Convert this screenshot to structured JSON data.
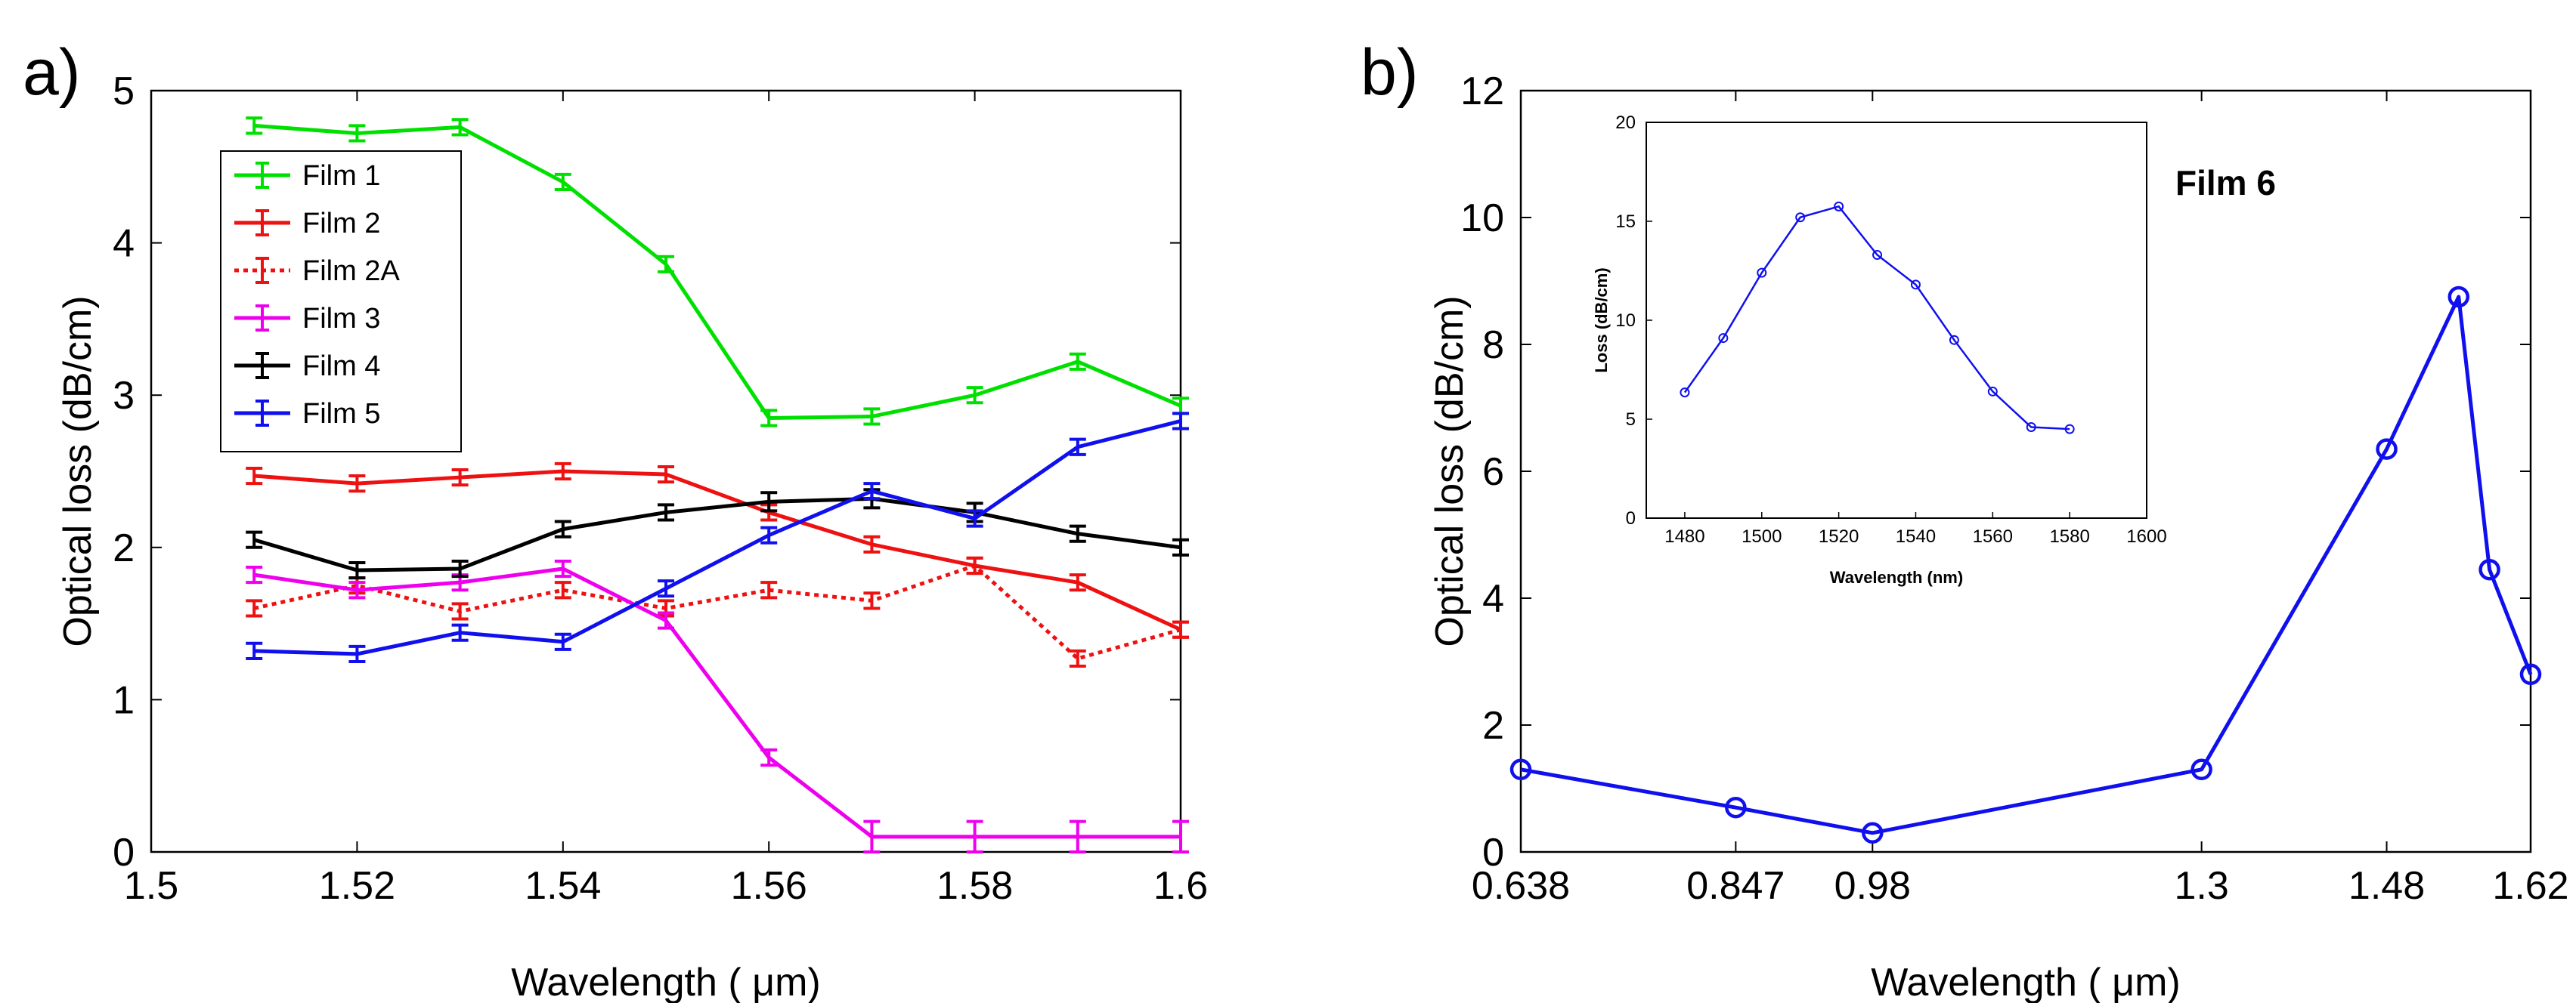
{
  "colors": {
    "film1": "#00e000",
    "film2": "#ee1111",
    "film2a": "#ee1111",
    "film3": "#ee00ee",
    "film4": "#000000",
    "film5": "#1010ee",
    "film6": "#1010ee"
  },
  "chart_data": [
    {
      "panel_label": "a)",
      "type": "line",
      "title": "",
      "xlabel": "Wavelength ( μm)",
      "ylabel": "Optical loss (dB/cm)",
      "xlim": [
        1.5,
        1.6
      ],
      "ylim": [
        0,
        5
      ],
      "xticks": [
        1.5,
        1.52,
        1.54,
        1.56,
        1.58,
        1.6
      ],
      "xtick_labels": [
        "1.5",
        "1.52",
        "1.54",
        "1.56",
        "1.58",
        "1.6"
      ],
      "yticks": [
        0,
        1,
        2,
        3,
        4,
        5
      ],
      "ytick_labels": [
        "0",
        "1",
        "2",
        "3",
        "4",
        "5"
      ],
      "legend_position": "top-left",
      "x": [
        1.51,
        1.52,
        1.53,
        1.54,
        1.55,
        1.56,
        1.57,
        1.58,
        1.59,
        1.6
      ],
      "series": [
        {
          "name": "Film 1",
          "color_key": "film1",
          "dashed": false,
          "values": [
            4.77,
            4.72,
            4.76,
            4.4,
            3.86,
            2.85,
            2.86,
            3.0,
            3.22,
            2.93
          ],
          "errors": [
            0.05,
            0.05,
            0.05,
            0.05,
            0.05,
            0.05,
            0.05,
            0.05,
            0.05,
            0.05
          ]
        },
        {
          "name": "Film 2",
          "color_key": "film2",
          "dashed": false,
          "values": [
            2.47,
            2.42,
            2.46,
            2.5,
            2.48,
            2.23,
            2.02,
            1.88,
            1.77,
            1.46
          ],
          "errors": [
            0.05,
            0.05,
            0.05,
            0.05,
            0.05,
            0.05,
            0.05,
            0.05,
            0.05,
            0.05
          ]
        },
        {
          "name": "Film 2A",
          "color_key": "film2a",
          "dashed": true,
          "values": [
            1.6,
            1.75,
            1.58,
            1.72,
            1.6,
            1.72,
            1.65,
            1.88,
            1.27,
            1.46
          ],
          "errors": [
            0.05,
            0.05,
            0.05,
            0.05,
            0.05,
            0.05,
            0.05,
            0.05,
            0.05,
            0.05
          ]
        },
        {
          "name": "Film 3",
          "color_key": "film3",
          "dashed": false,
          "values": [
            1.82,
            1.72,
            1.77,
            1.86,
            1.52,
            0.62,
            0.1,
            0.1,
            0.1,
            0.1
          ],
          "errors": [
            0.05,
            0.05,
            0.05,
            0.05,
            0.05,
            0.05,
            0.1,
            0.1,
            0.1,
            0.1
          ]
        },
        {
          "name": "Film 4",
          "color_key": "film4",
          "dashed": false,
          "values": [
            2.05,
            1.85,
            1.86,
            2.12,
            2.23,
            2.3,
            2.32,
            2.23,
            2.09,
            2.0
          ],
          "errors": [
            0.05,
            0.05,
            0.05,
            0.05,
            0.05,
            0.06,
            0.06,
            0.06,
            0.05,
            0.05
          ]
        },
        {
          "name": "Film 5",
          "color_key": "film5",
          "dashed": false,
          "values": [
            1.32,
            1.3,
            1.44,
            1.38,
            1.73,
            2.08,
            2.37,
            2.19,
            2.66,
            2.83
          ],
          "errors": [
            0.05,
            0.05,
            0.05,
            0.05,
            0.05,
            0.05,
            0.05,
            0.05,
            0.05,
            0.05
          ]
        }
      ]
    },
    {
      "panel_label": "b)",
      "type": "line",
      "title": "",
      "annotation": "Film 6",
      "xlabel": "Wavelength ( μm)",
      "ylabel": "Optical loss (dB/cm)",
      "xlim": [
        0.638,
        1.62
      ],
      "ylim": [
        0,
        12
      ],
      "xticks": [
        0.638,
        0.847,
        0.98,
        1.3,
        1.48,
        1.62
      ],
      "xtick_labels": [
        "0.638",
        "0.847",
        "0.98",
        "1.3",
        "1.48",
        "1.62"
      ],
      "yticks": [
        0,
        2,
        4,
        6,
        8,
        10,
        12
      ],
      "ytick_labels": [
        "0",
        "2",
        "4",
        "6",
        "8",
        "10",
        "12"
      ],
      "series": [
        {
          "name": "Film 6",
          "color_key": "film6",
          "marker": "circle",
          "x": [
            0.638,
            0.847,
            0.98,
            1.3,
            1.48,
            1.55,
            1.58,
            1.62
          ],
          "values": [
            1.3,
            0.7,
            0.3,
            1.3,
            6.35,
            8.75,
            4.45,
            2.8
          ]
        }
      ],
      "inset": {
        "xlabel": "Wavelength (nm)",
        "ylabel": "Loss (dB/cm)",
        "xlim": [
          1470,
          1600
        ],
        "ylim": [
          0,
          20
        ],
        "xticks": [
          1480,
          1500,
          1520,
          1540,
          1560,
          1580,
          1600
        ],
        "xtick_labels": [
          "1480",
          "1500",
          "1520",
          "1540",
          "1560",
          "1580",
          "1600"
        ],
        "yticks": [
          0,
          5,
          10,
          15,
          20
        ],
        "ytick_labels": [
          "0",
          "5",
          "10",
          "15",
          "20"
        ],
        "x": [
          1480,
          1490,
          1500,
          1510,
          1520,
          1530,
          1540,
          1550,
          1560,
          1570,
          1580
        ],
        "values": [
          6.35,
          9.1,
          12.4,
          15.2,
          15.75,
          13.3,
          11.8,
          9.0,
          6.4,
          4.6,
          4.5
        ]
      }
    }
  ]
}
